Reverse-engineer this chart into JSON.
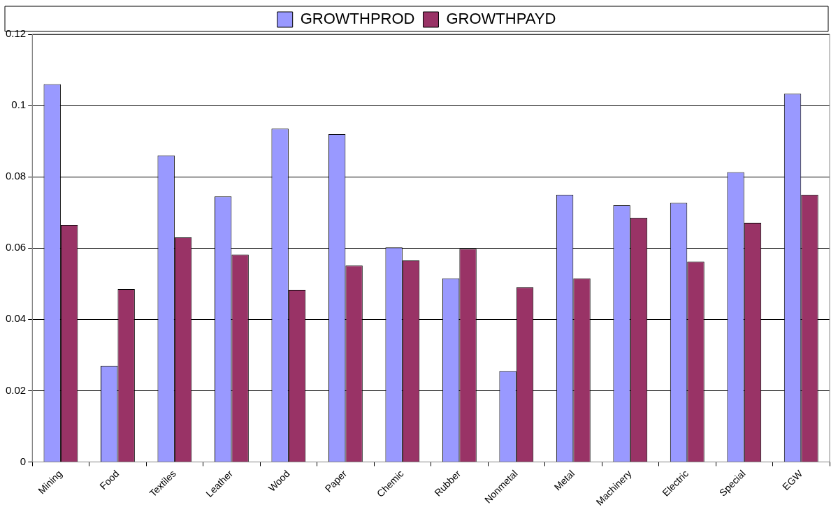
{
  "chart_data": {
    "type": "bar",
    "categories": [
      "Mining",
      "Food",
      "Textiles",
      "Leather",
      "Wood",
      "Paper",
      "Chemic",
      "Rubber",
      "Nonmetal",
      "Metal",
      "Machinery",
      "Electric",
      "Special",
      "EGW"
    ],
    "series": [
      {
        "name": "GROWTHPROD",
        "color": "#9999ff",
        "values": [
          0.106,
          0.027,
          0.086,
          0.0745,
          0.0935,
          0.092,
          0.0602,
          0.0515,
          0.0255,
          0.075,
          0.072,
          0.0727,
          0.0813,
          0.1033
        ]
      },
      {
        "name": "GROWTHPAYD",
        "color": "#993366",
        "values": [
          0.0665,
          0.0485,
          0.063,
          0.0582,
          0.0483,
          0.0551,
          0.0565,
          0.0598,
          0.049,
          0.0515,
          0.0685,
          0.0562,
          0.0671,
          0.075
        ]
      }
    ],
    "ylim": [
      0,
      0.12
    ],
    "yticks": [
      0,
      0.02,
      0.04,
      0.06,
      0.08,
      0.1,
      0.12
    ],
    "grid": "y",
    "legend": "top"
  }
}
